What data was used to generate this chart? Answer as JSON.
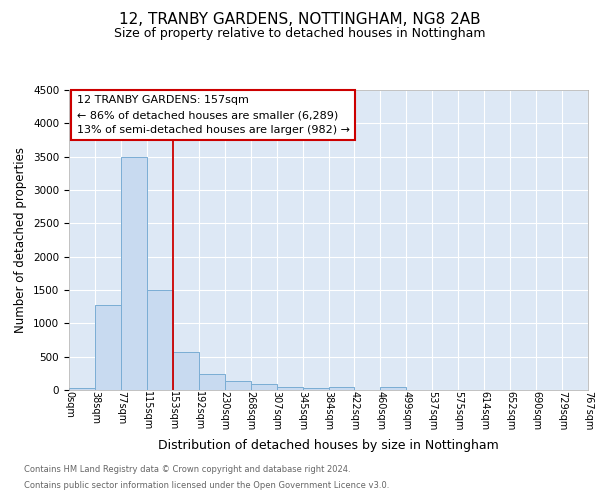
{
  "title": "12, TRANBY GARDENS, NOTTINGHAM, NG8 2AB",
  "subtitle": "Size of property relative to detached houses in Nottingham",
  "xlabel": "Distribution of detached houses by size in Nottingham",
  "ylabel": "Number of detached properties",
  "bins": [
    "0sqm",
    "38sqm",
    "77sqm",
    "115sqm",
    "153sqm",
    "192sqm",
    "230sqm",
    "268sqm",
    "307sqm",
    "345sqm",
    "384sqm",
    "422sqm",
    "460sqm",
    "499sqm",
    "537sqm",
    "575sqm",
    "614sqm",
    "652sqm",
    "690sqm",
    "729sqm",
    "767sqm"
  ],
  "values": [
    30,
    1270,
    3500,
    1500,
    570,
    240,
    140,
    85,
    50,
    30,
    50,
    0,
    50,
    0,
    0,
    0,
    0,
    0,
    0,
    0
  ],
  "bar_color": "#c8daf0",
  "bar_edge_color": "#7aadd4",
  "vline_x_index": 4,
  "vline_color": "#cc0000",
  "annotation_title": "12 TRANBY GARDENS: 157sqm",
  "annotation_line1": "← 86% of detached houses are smaller (6,289)",
  "annotation_line2": "13% of semi-detached houses are larger (982) →",
  "annotation_box_color": "#cc0000",
  "ylim": [
    0,
    4500
  ],
  "yticks": [
    0,
    500,
    1000,
    1500,
    2000,
    2500,
    3000,
    3500,
    4000,
    4500
  ],
  "title_fontsize": 11,
  "subtitle_fontsize": 9,
  "xlabel_fontsize": 9,
  "ylabel_fontsize": 8.5,
  "ann_fontsize": 8,
  "tick_fontsize": 7,
  "ytick_fontsize": 7.5,
  "footer_line1": "Contains HM Land Registry data © Crown copyright and database right 2024.",
  "footer_line2": "Contains public sector information licensed under the Open Government Licence v3.0.",
  "fig_bg_color": "#ffffff",
  "plot_bg_color": "#dde8f5"
}
